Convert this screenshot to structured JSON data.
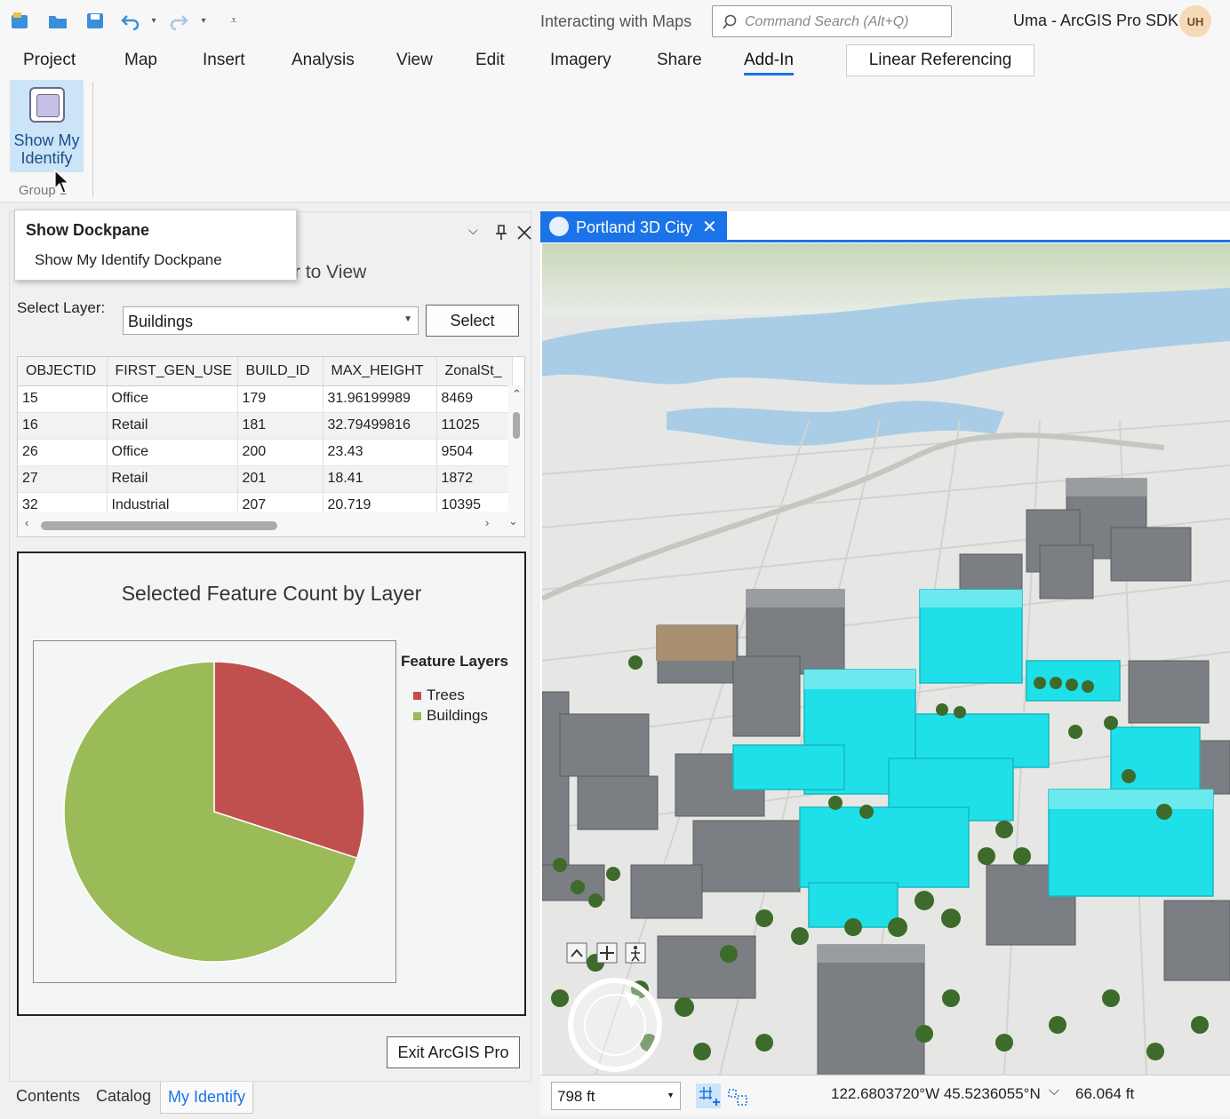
{
  "titlebar": {
    "project_name": "Interacting with Maps",
    "search_placeholder": "Command Search (Alt+Q)",
    "user_name": "Uma - ArcGIS Pro SDK",
    "user_initials": "UH"
  },
  "ribbon": {
    "tabs": [
      "Project",
      "Map",
      "Insert",
      "Analysis",
      "View",
      "Edit",
      "Imagery",
      "Share",
      "Add-In"
    ],
    "active_tab": "Add-In",
    "contextual_tab": "Linear Referencing",
    "show_button_label": "Show My Identify",
    "group_label": "Group 1"
  },
  "tooltip": {
    "title": "Show Dockpane",
    "body": "Show My Identify Dockpane"
  },
  "dockpane": {
    "partial_title": "r to View",
    "select_layer_label": "Select Layer:",
    "layer_value": "Buildings",
    "select_button": "Select",
    "exit_button": "Exit ArcGIS Pro",
    "table": {
      "columns": [
        "OBJECTID",
        "FIRST_GEN_USE",
        "BUILD_ID",
        "MAX_HEIGHT",
        "ZonalSt_"
      ],
      "rows": [
        [
          "15",
          "Office",
          "179",
          "31.96199989",
          "8469"
        ],
        [
          "16",
          "Retail",
          "181",
          "32.79499816",
          "11025"
        ],
        [
          "26",
          "Office",
          "200",
          "23.43",
          "9504"
        ],
        [
          "27",
          "Retail",
          "201",
          "18.41",
          "1872"
        ],
        [
          "32",
          "Industrial",
          "207",
          "20.719",
          "10395"
        ]
      ]
    },
    "chart_title": "Selected Feature Count by Layer",
    "legend_title": "Feature Layers"
  },
  "chart_data": {
    "type": "pie",
    "title": "Selected Feature Count by Layer",
    "legend_title": "Feature Layers",
    "legend_position": "right",
    "slices": [
      {
        "label": "Trees",
        "share": 0.3,
        "color": "#c0504d"
      },
      {
        "label": "Buildings",
        "share": 0.7,
        "color": "#9bbb59"
      }
    ]
  },
  "bottom_tabs": [
    "Contents",
    "Catalog",
    "My Identify"
  ],
  "active_bottom_tab": "My Identify",
  "map": {
    "tab_title": "Portland 3D City",
    "scale": "798 ft",
    "coordinates": "122.6803720°W 45.5236055°N",
    "elevation": "66.064 ft"
  },
  "colors": {
    "accent": "#1a73e8",
    "selected_buildings": "#1fe0e8",
    "ribbon_button_highlight": "#cce4f7"
  }
}
